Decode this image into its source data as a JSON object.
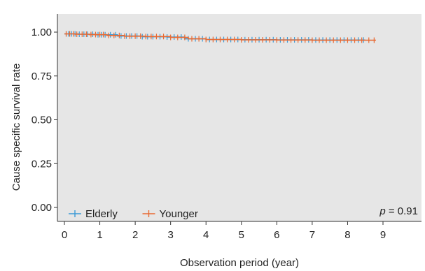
{
  "chart_data": {
    "type": "line",
    "xlabel": "Observation period (year)",
    "ylabel": "Cause specific survival rate",
    "xlim": [
      0,
      10
    ],
    "ylim": [
      0,
      1
    ],
    "xticks": [
      0,
      1,
      2,
      3,
      4,
      5,
      6,
      7,
      8,
      9
    ],
    "yticks": [
      0.0,
      0.25,
      0.5,
      0.75,
      1.0
    ],
    "ytick_labels": [
      "0.00",
      "0.25",
      "0.50",
      "0.75",
      "1.00"
    ],
    "legend_position": "bottom-left",
    "annotation": {
      "symbol": "p",
      "text": "= 0.91"
    },
    "series": [
      {
        "name": "Elderly",
        "color": "#3b9ad6",
        "x": [
          0,
          0.4,
          0.9,
          1.5,
          2.2,
          2.9,
          3.4,
          4.0,
          5.0,
          6.0,
          7.0,
          8.0,
          8.5
        ],
        "y": [
          0.99,
          0.988,
          0.985,
          0.978,
          0.974,
          0.972,
          0.962,
          0.958,
          0.957,
          0.956,
          0.955,
          0.955,
          0.955
        ],
        "censor_x": [
          0.05,
          0.12,
          0.2,
          0.3,
          0.42,
          0.55,
          0.65,
          0.8,
          0.95,
          1.05,
          1.15,
          1.3,
          1.45,
          1.6,
          1.75,
          1.9,
          2.05,
          2.2,
          2.35,
          2.5,
          2.7,
          2.9,
          3.1,
          3.3,
          3.5,
          3.7,
          3.9,
          4.1,
          4.3,
          4.5,
          4.7,
          4.9,
          5.1,
          5.3,
          5.5,
          5.7,
          5.9,
          6.1,
          6.3,
          6.5,
          6.7,
          6.9,
          7.1,
          7.3,
          7.5,
          7.7,
          7.9,
          8.1,
          8.3,
          8.45
        ]
      },
      {
        "name": "Younger",
        "color": "#e86a33",
        "x": [
          0,
          0.3,
          0.7,
          1.2,
          1.7,
          2.3,
          3.0,
          3.5,
          4.0,
          5.0,
          6.0,
          7.0,
          8.0,
          8.8
        ],
        "y": [
          0.99,
          0.988,
          0.986,
          0.981,
          0.977,
          0.975,
          0.97,
          0.962,
          0.958,
          0.956,
          0.955,
          0.954,
          0.954,
          0.954
        ],
        "censor_x": [
          0.05,
          0.15,
          0.25,
          0.35,
          0.5,
          0.62,
          0.75,
          0.88,
          1.0,
          1.1,
          1.25,
          1.4,
          1.55,
          1.7,
          1.85,
          2.0,
          2.15,
          2.3,
          2.45,
          2.6,
          2.8,
          3.0,
          3.2,
          3.4,
          3.6,
          3.8,
          4.0,
          4.2,
          4.4,
          4.6,
          4.8,
          5.0,
          5.2,
          5.4,
          5.6,
          5.8,
          6.0,
          6.2,
          6.4,
          6.6,
          6.8,
          7.0,
          7.2,
          7.4,
          7.6,
          7.8,
          8.0,
          8.2,
          8.4,
          8.6,
          8.75
        ]
      }
    ]
  }
}
